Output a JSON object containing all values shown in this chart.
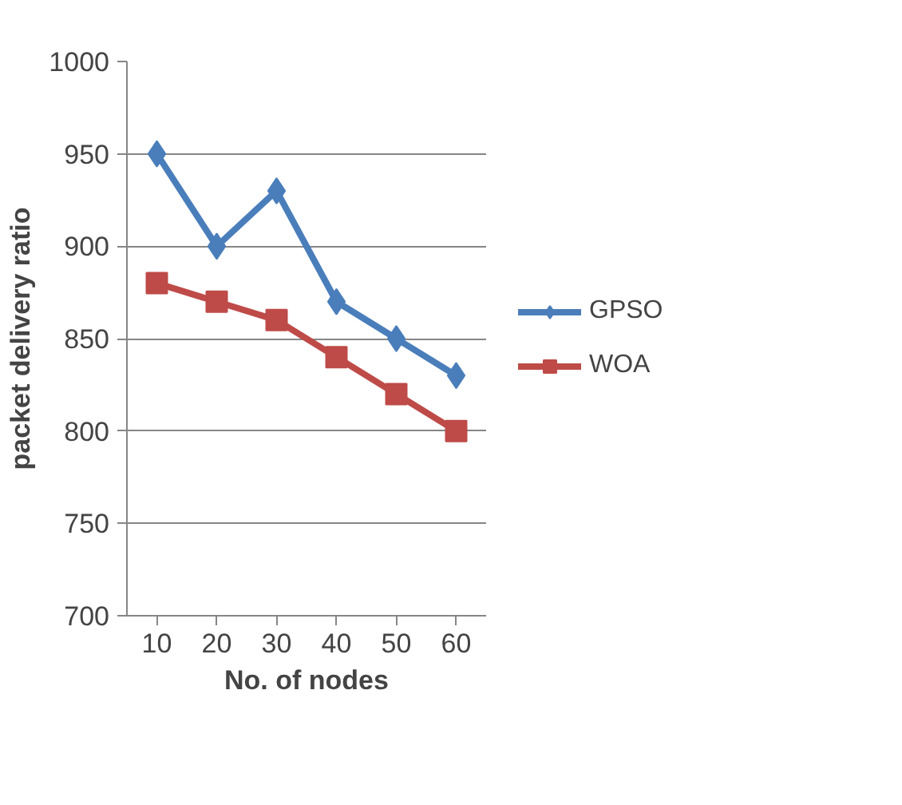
{
  "chart_data": {
    "type": "line",
    "xlabel": "No. of nodes",
    "ylabel": "packet delivery ratio",
    "categories": [
      "10",
      "20",
      "30",
      "40",
      "50",
      "60"
    ],
    "series": [
      {
        "name": "GPSO",
        "color": "#4a7ebb",
        "marker": "diamond",
        "values": [
          950,
          900,
          930,
          870,
          850,
          830
        ]
      },
      {
        "name": "WOA",
        "color": "#be4b48",
        "marker": "square",
        "values": [
          880,
          870,
          860,
          840,
          820,
          800
        ]
      }
    ],
    "ylim": [
      700,
      1000
    ],
    "yticks": [
      700,
      750,
      800,
      850,
      900,
      950,
      1000
    ],
    "grid": "y",
    "legend": "right"
  }
}
